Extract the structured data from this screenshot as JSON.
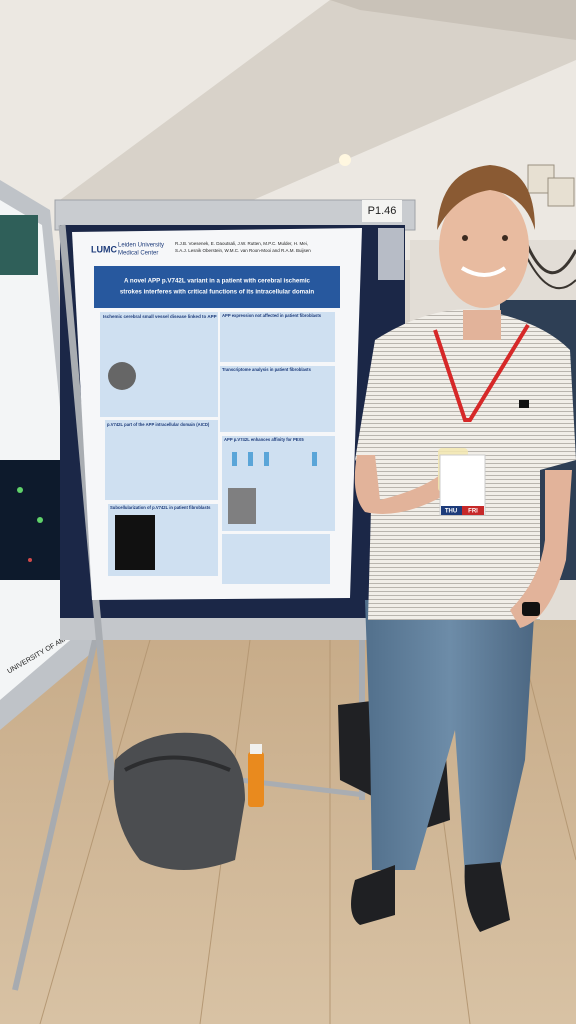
{
  "sign": "P1.46",
  "poster": {
    "logo": "LUMC",
    "institute": [
      "Leiden University",
      "Medical Center"
    ],
    "title_lines": [
      "A novel APP p.V742L variant in a patient with cerebral ischemic",
      "strokes interferes with critical functions of its intracellular domain"
    ],
    "authors": [
      "R.J.B. Voesenek, E. Daoutsali, J.W. Rutten, M.P.C. Mulder, H. Mei,",
      "S.A.J. Lesnik Oberstein, W.M.C. van Roon-Mooi and R.A.M. Buijsen"
    ],
    "sections": [
      "Ischemic cerebral small vessel disease linked to APP",
      "APP expression not affected in patient fibroblasts",
      "Transcriptome analysis in patient fibroblasts",
      "p.V742L part of the APP intracellular domain (AICD)",
      "APP p.V742L enhances affinity for PEX5",
      "Subcellularization of p.V742L in patient fibroblasts"
    ]
  },
  "badge": [
    "THU",
    "FRI"
  ],
  "left_poster": {
    "logo": "UNIVERSITY OF AMSTERDAM"
  }
}
